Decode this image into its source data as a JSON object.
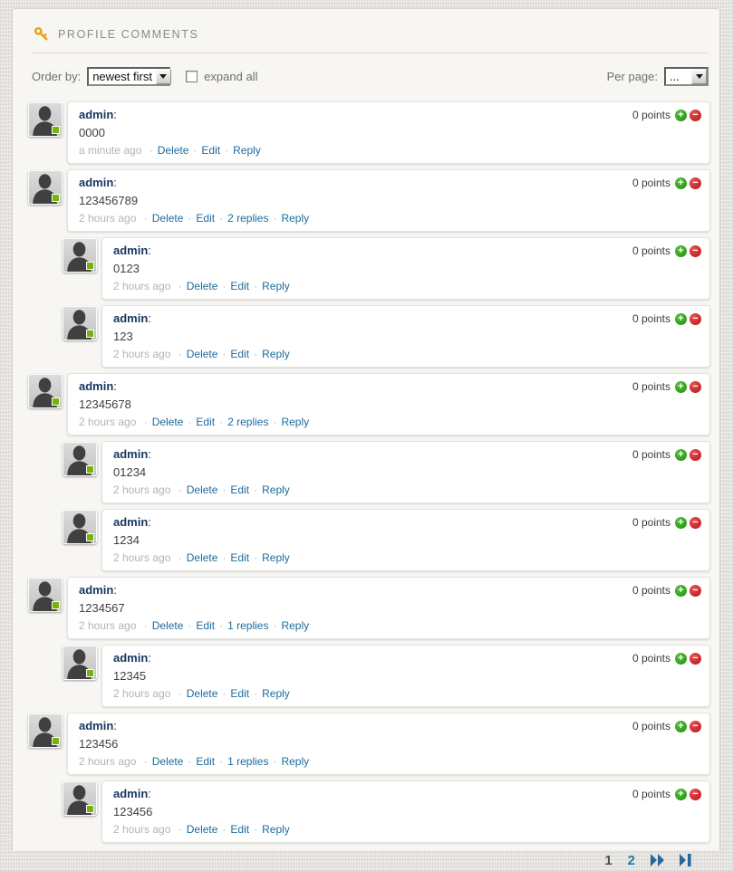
{
  "header": {
    "title": "PROFILE COMMENTS",
    "icon": "key-icon"
  },
  "toolbar": {
    "order_by_label": "Order by:",
    "order_by_value": "newest first",
    "expand_all_label": "expand all",
    "expand_all_checked": false,
    "per_page_label": "Per page:",
    "per_page_value": "..."
  },
  "labels": {
    "colon": ":",
    "separator": "·",
    "vote_up_glyph": "+",
    "vote_down_glyph": "−"
  },
  "icons": {
    "header": "key-icon",
    "select_arrow": "chevron-down-icon",
    "avatar": "user-silhouette-icon",
    "online": "online-status-badge",
    "vote_up": "plus-circle-icon",
    "vote_down": "minus-circle-icon",
    "pagination_forward": "fast-forward-icon",
    "pagination_last": "last-page-icon"
  },
  "comments": [
    {
      "author": "admin",
      "text": "0000",
      "time": "a minute ago",
      "points": "0 points",
      "nested": false,
      "actions": [
        "Delete",
        "Edit",
        "Reply"
      ]
    },
    {
      "author": "admin",
      "text": "123456789",
      "time": "2 hours ago",
      "points": "0 points",
      "nested": false,
      "actions": [
        "Delete",
        "Edit",
        "2 replies",
        "Reply"
      ]
    },
    {
      "author": "admin",
      "text": "0123",
      "time": "2 hours ago",
      "points": "0 points",
      "nested": true,
      "actions": [
        "Delete",
        "Edit",
        "Reply"
      ]
    },
    {
      "author": "admin",
      "text": "123",
      "time": "2 hours ago",
      "points": "0 points",
      "nested": true,
      "actions": [
        "Delete",
        "Edit",
        "Reply"
      ]
    },
    {
      "author": "admin",
      "text": "12345678",
      "time": "2 hours ago",
      "points": "0 points",
      "nested": false,
      "actions": [
        "Delete",
        "Edit",
        "2 replies",
        "Reply"
      ]
    },
    {
      "author": "admin",
      "text": "01234",
      "time": "2 hours ago",
      "points": "0 points",
      "nested": true,
      "actions": [
        "Delete",
        "Edit",
        "Reply"
      ]
    },
    {
      "author": "admin",
      "text": "1234",
      "time": "2 hours ago",
      "points": "0 points",
      "nested": true,
      "actions": [
        "Delete",
        "Edit",
        "Reply"
      ]
    },
    {
      "author": "admin",
      "text": "1234567",
      "time": "2 hours ago",
      "points": "0 points",
      "nested": false,
      "actions": [
        "Delete",
        "Edit",
        "1 replies",
        "Reply"
      ]
    },
    {
      "author": "admin",
      "text": "12345",
      "time": "2 hours ago",
      "points": "0 points",
      "nested": true,
      "actions": [
        "Delete",
        "Edit",
        "Reply"
      ]
    },
    {
      "author": "admin",
      "text": "123456",
      "time": "2 hours ago",
      "points": "0 points",
      "nested": false,
      "actions": [
        "Delete",
        "Edit",
        "1 replies",
        "Reply"
      ]
    },
    {
      "author": "admin",
      "text": "123456",
      "time": "2 hours ago",
      "points": "0 points",
      "nested": true,
      "actions": [
        "Delete",
        "Edit",
        "Reply"
      ]
    }
  ],
  "pagination": {
    "current_page": "1",
    "pages": [
      "1",
      "2"
    ]
  },
  "colors": {
    "accent_link": "#1d6b9d",
    "username": "#16365f",
    "timestamp": "#b5b3b0",
    "title": "#8a8a8a",
    "vote_up": "#2fa01d",
    "vote_down": "#c21414",
    "online_badge": "#74b30d",
    "key_icon": "#e9a216",
    "page_bg": "#e5e3df",
    "panel_bg": "#f7f6f3",
    "card_bg": "#ffffff"
  }
}
